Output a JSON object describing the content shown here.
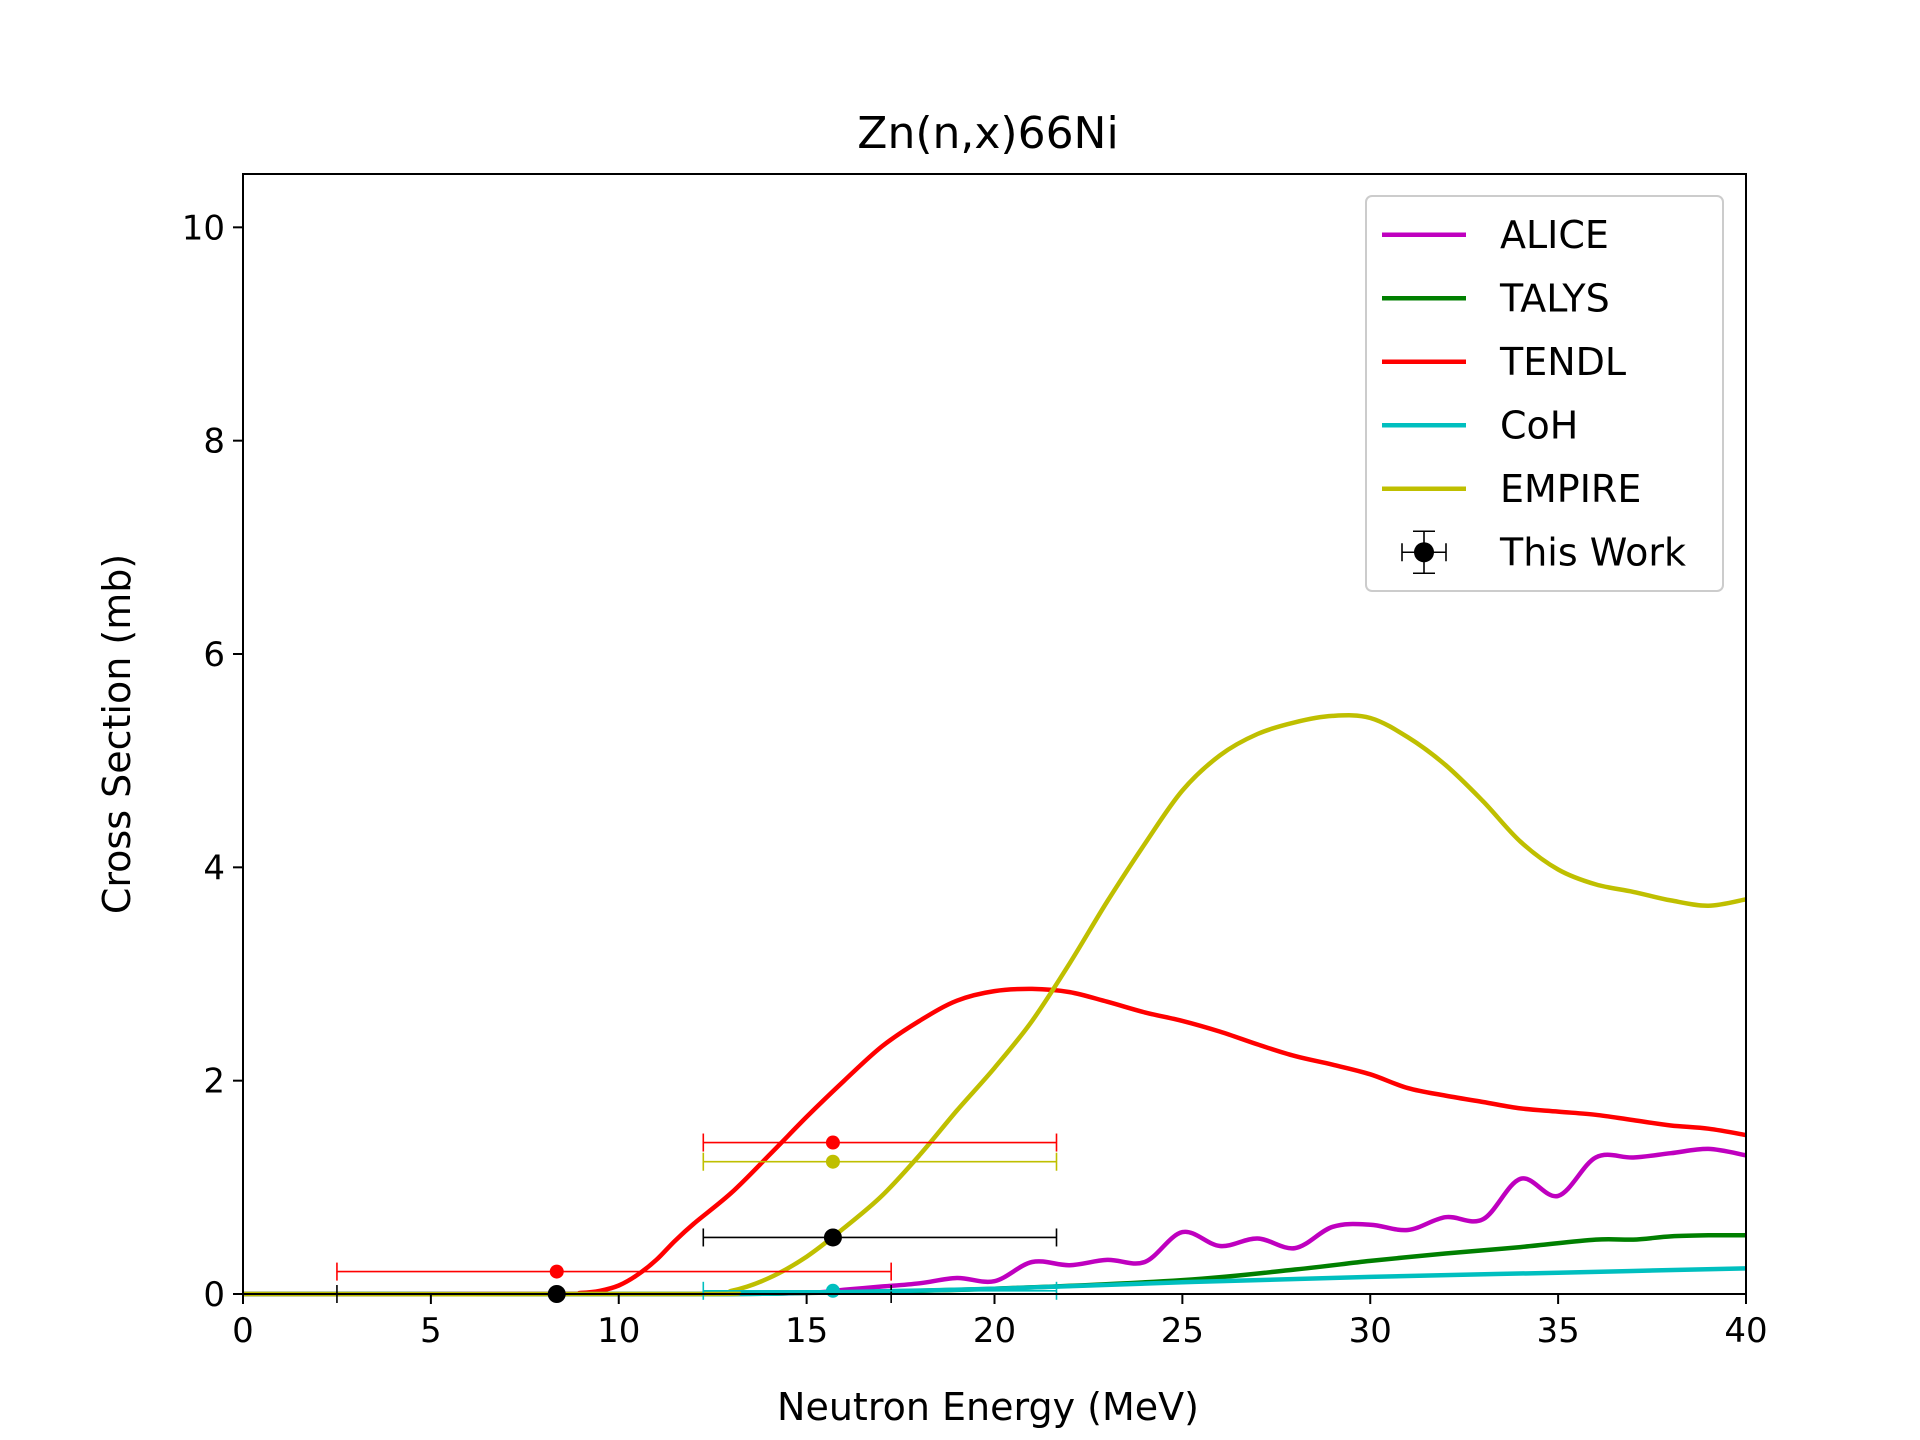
{
  "chart_data": {
    "type": "line",
    "title": "Zn(n,x)66Ni",
    "xlabel": "Neutron Energy (MeV)",
    "ylabel": "Cross Section (mb)",
    "xlim": [
      0,
      40
    ],
    "ylim": [
      0,
      10.5
    ],
    "xticks": [
      0,
      5,
      10,
      15,
      20,
      25,
      30,
      35,
      40
    ],
    "yticks": [
      0,
      2,
      4,
      6,
      8,
      10
    ],
    "grid": false,
    "legend_position": "top-right",
    "series": [
      {
        "name": "ALICE",
        "color": "#bf00bf",
        "x": [
          0,
          12,
          15,
          16,
          17,
          18,
          19,
          20,
          21,
          22,
          23,
          24,
          25,
          26,
          27,
          28,
          29,
          30,
          31,
          32,
          33,
          34,
          35,
          36,
          37,
          38,
          39,
          40
        ],
        "y": [
          0,
          0,
          0.01,
          0.04,
          0.07,
          0.1,
          0.15,
          0.12,
          0.3,
          0.27,
          0.32,
          0.3,
          0.58,
          0.45,
          0.52,
          0.43,
          0.63,
          0.65,
          0.6,
          0.72,
          0.7,
          1.08,
          0.92,
          1.28,
          1.28,
          1.32,
          1.36,
          1.3
        ]
      },
      {
        "name": "TALYS",
        "color": "#007f00",
        "x": [
          0,
          12,
          15,
          20,
          25,
          28,
          30,
          32,
          34,
          36,
          37,
          38,
          39,
          40
        ],
        "y": [
          0,
          0,
          0.01,
          0.05,
          0.13,
          0.23,
          0.31,
          0.38,
          0.44,
          0.51,
          0.51,
          0.54,
          0.55,
          0.55
        ]
      },
      {
        "name": "TENDL",
        "color": "#ff0000",
        "x": [
          0,
          8,
          9,
          9.5,
          10,
          10.5,
          11,
          11.5,
          12,
          13,
          14,
          15,
          16,
          17,
          18,
          19,
          20,
          21,
          22,
          23,
          24,
          25,
          26,
          27,
          28,
          29,
          30,
          31,
          32,
          33,
          34,
          35,
          36,
          37,
          38,
          39,
          40
        ],
        "y": [
          0,
          0,
          0.01,
          0.03,
          0.08,
          0.18,
          0.32,
          0.5,
          0.66,
          0.95,
          1.3,
          1.66,
          2.0,
          2.32,
          2.56,
          2.75,
          2.84,
          2.86,
          2.83,
          2.74,
          2.64,
          2.56,
          2.46,
          2.34,
          2.23,
          2.15,
          2.06,
          1.93,
          1.86,
          1.8,
          1.74,
          1.71,
          1.68,
          1.63,
          1.58,
          1.55,
          1.49
        ]
      },
      {
        "name": "CoH",
        "color": "#00bfbf",
        "x": [
          0,
          12,
          15,
          20,
          25,
          30,
          35,
          40
        ],
        "y": [
          0,
          0,
          0.01,
          0.05,
          0.11,
          0.16,
          0.2,
          0.24
        ]
      },
      {
        "name": "EMPIRE",
        "color": "#bfbf00",
        "x": [
          0,
          12,
          13,
          14,
          15,
          16,
          17,
          18,
          19,
          20,
          21,
          22,
          23,
          24,
          25,
          26,
          27,
          28,
          29,
          30,
          31,
          32,
          33,
          34,
          35,
          36,
          37,
          38,
          39,
          40
        ],
        "y": [
          0,
          0,
          0.03,
          0.15,
          0.35,
          0.62,
          0.92,
          1.3,
          1.72,
          2.12,
          2.56,
          3.1,
          3.68,
          4.22,
          4.72,
          5.05,
          5.25,
          5.36,
          5.42,
          5.4,
          5.22,
          4.96,
          4.62,
          4.24,
          3.98,
          3.84,
          3.77,
          3.69,
          3.64,
          3.7
        ]
      }
    ],
    "points": [
      {
        "series": "This Work",
        "x": 8.35,
        "y": 0.0,
        "xerr": [
          5.85,
          8.9
        ],
        "yerr": [
          0,
          0
        ],
        "color": "#000000",
        "size": 9
      },
      {
        "series": "This Work",
        "x": 15.7,
        "y": 0.53,
        "xerr": [
          3.45,
          5.95
        ],
        "yerr": [
          0,
          0
        ],
        "color": "#000000",
        "size": 9
      },
      {
        "series": "TENDL",
        "x": 8.35,
        "y": 0.21,
        "xerr": [
          5.85,
          8.9
        ],
        "color": "#ff0000",
        "size": 7
      },
      {
        "series": "TENDL",
        "x": 15.7,
        "y": 1.42,
        "xerr": [
          3.45,
          5.95
        ],
        "color": "#ff0000",
        "size": 7
      },
      {
        "series": "EMPIRE",
        "x": 15.7,
        "y": 1.24,
        "xerr": [
          3.45,
          5.95
        ],
        "color": "#bfbf00",
        "size": 7
      },
      {
        "series": "CoH",
        "x": 15.7,
        "y": 0.03,
        "xerr": [
          3.45,
          5.95
        ],
        "color": "#00bfbf",
        "size": 7
      }
    ],
    "legend": [
      {
        "label": "ALICE",
        "color": "#bf00bf",
        "kind": "line"
      },
      {
        "label": "TALYS",
        "color": "#007f00",
        "kind": "line"
      },
      {
        "label": "TENDL",
        "color": "#ff0000",
        "kind": "line"
      },
      {
        "label": "CoH",
        "color": "#00bfbf",
        "kind": "line"
      },
      {
        "label": "EMPIRE",
        "color": "#bfbf00",
        "kind": "line"
      },
      {
        "label": "This Work",
        "color": "#000000",
        "kind": "errorbar"
      }
    ]
  }
}
